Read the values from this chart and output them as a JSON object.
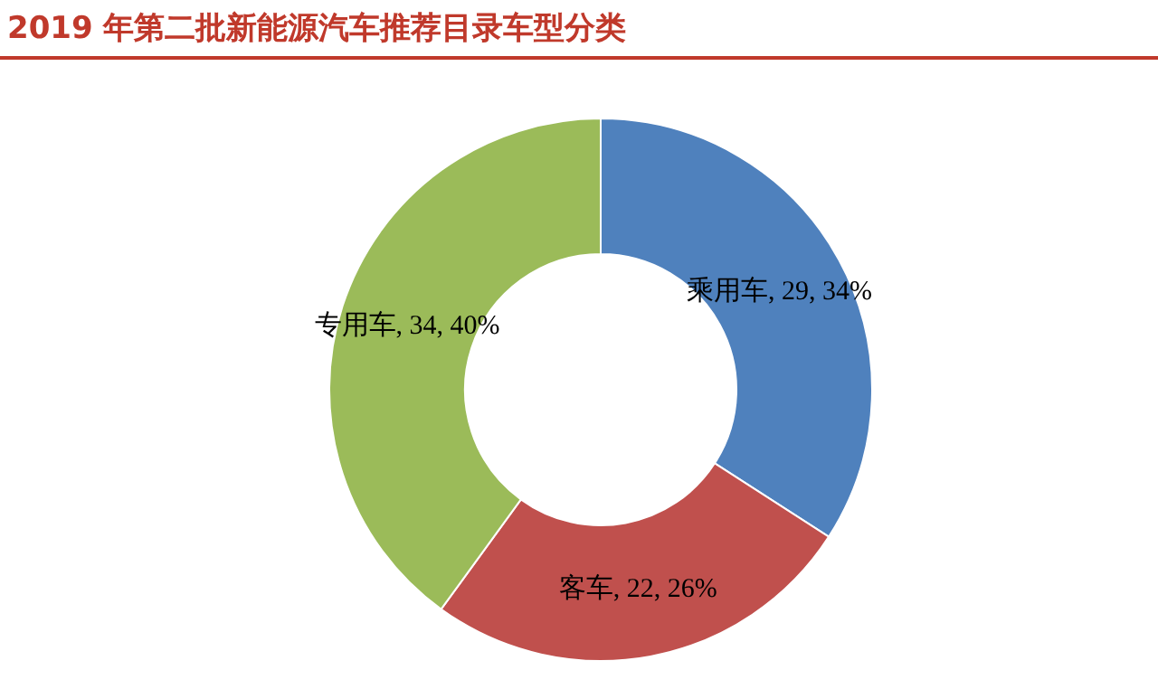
{
  "chart_data": {
    "type": "donut",
    "title": "2019 年第二批新能源汽车推荐目录车型分类",
    "categories": [
      "乘用车",
      "客车",
      "专用车"
    ],
    "values": [
      29,
      22,
      34
    ],
    "colors": [
      "#4f81bd",
      "#c0504d",
      "#9bbb59"
    ],
    "value_labels": [
      "29, 34%",
      "22, 26%",
      "34, 40%"
    ],
    "legend": false
  }
}
